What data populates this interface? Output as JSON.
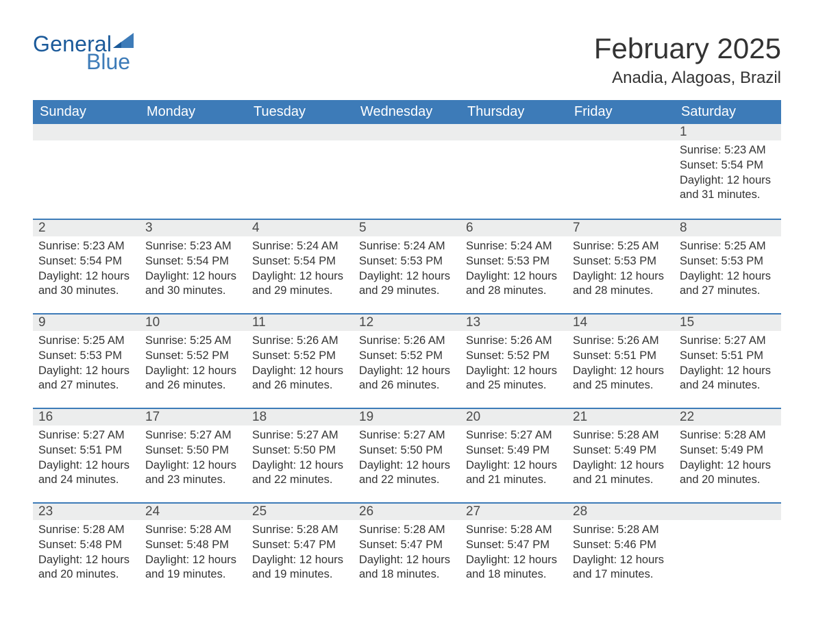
{
  "brand": {
    "word1": "General",
    "word2": "Blue",
    "logo_color_dark": "#1b5a9a",
    "logo_color_light": "#3d7bb8"
  },
  "title": "February 2025",
  "location": "Anadia, Alagoas, Brazil",
  "colors": {
    "header_bg": "#3d7bb8",
    "header_text": "#ffffff",
    "row_divider": "#3d7bb8",
    "daynum_bg": "#eceded",
    "text": "#333333",
    "background": "#ffffff"
  },
  "typography": {
    "title_fontsize": 42,
    "location_fontsize": 24,
    "dayheader_fontsize": 20,
    "daynum_fontsize": 19,
    "body_fontsize": 16.5,
    "font_family": "Arial"
  },
  "day_labels": [
    "Sunday",
    "Monday",
    "Tuesday",
    "Wednesday",
    "Thursday",
    "Friday",
    "Saturday"
  ],
  "weeks": [
    [
      null,
      null,
      null,
      null,
      null,
      null,
      {
        "n": "1",
        "sunrise": "5:23 AM",
        "sunset": "5:54 PM",
        "daylight1": "Daylight: 12 hours",
        "daylight2": "and 31 minutes."
      }
    ],
    [
      {
        "n": "2",
        "sunrise": "5:23 AM",
        "sunset": "5:54 PM",
        "daylight1": "Daylight: 12 hours",
        "daylight2": "and 30 minutes."
      },
      {
        "n": "3",
        "sunrise": "5:23 AM",
        "sunset": "5:54 PM",
        "daylight1": "Daylight: 12 hours",
        "daylight2": "and 30 minutes."
      },
      {
        "n": "4",
        "sunrise": "5:24 AM",
        "sunset": "5:54 PM",
        "daylight1": "Daylight: 12 hours",
        "daylight2": "and 29 minutes."
      },
      {
        "n": "5",
        "sunrise": "5:24 AM",
        "sunset": "5:53 PM",
        "daylight1": "Daylight: 12 hours",
        "daylight2": "and 29 minutes."
      },
      {
        "n": "6",
        "sunrise": "5:24 AM",
        "sunset": "5:53 PM",
        "daylight1": "Daylight: 12 hours",
        "daylight2": "and 28 minutes."
      },
      {
        "n": "7",
        "sunrise": "5:25 AM",
        "sunset": "5:53 PM",
        "daylight1": "Daylight: 12 hours",
        "daylight2": "and 28 minutes."
      },
      {
        "n": "8",
        "sunrise": "5:25 AM",
        "sunset": "5:53 PM",
        "daylight1": "Daylight: 12 hours",
        "daylight2": "and 27 minutes."
      }
    ],
    [
      {
        "n": "9",
        "sunrise": "5:25 AM",
        "sunset": "5:53 PM",
        "daylight1": "Daylight: 12 hours",
        "daylight2": "and 27 minutes."
      },
      {
        "n": "10",
        "sunrise": "5:25 AM",
        "sunset": "5:52 PM",
        "daylight1": "Daylight: 12 hours",
        "daylight2": "and 26 minutes."
      },
      {
        "n": "11",
        "sunrise": "5:26 AM",
        "sunset": "5:52 PM",
        "daylight1": "Daylight: 12 hours",
        "daylight2": "and 26 minutes."
      },
      {
        "n": "12",
        "sunrise": "5:26 AM",
        "sunset": "5:52 PM",
        "daylight1": "Daylight: 12 hours",
        "daylight2": "and 26 minutes."
      },
      {
        "n": "13",
        "sunrise": "5:26 AM",
        "sunset": "5:52 PM",
        "daylight1": "Daylight: 12 hours",
        "daylight2": "and 25 minutes."
      },
      {
        "n": "14",
        "sunrise": "5:26 AM",
        "sunset": "5:51 PM",
        "daylight1": "Daylight: 12 hours",
        "daylight2": "and 25 minutes."
      },
      {
        "n": "15",
        "sunrise": "5:27 AM",
        "sunset": "5:51 PM",
        "daylight1": "Daylight: 12 hours",
        "daylight2": "and 24 minutes."
      }
    ],
    [
      {
        "n": "16",
        "sunrise": "5:27 AM",
        "sunset": "5:51 PM",
        "daylight1": "Daylight: 12 hours",
        "daylight2": "and 24 minutes."
      },
      {
        "n": "17",
        "sunrise": "5:27 AM",
        "sunset": "5:50 PM",
        "daylight1": "Daylight: 12 hours",
        "daylight2": "and 23 minutes."
      },
      {
        "n": "18",
        "sunrise": "5:27 AM",
        "sunset": "5:50 PM",
        "daylight1": "Daylight: 12 hours",
        "daylight2": "and 22 minutes."
      },
      {
        "n": "19",
        "sunrise": "5:27 AM",
        "sunset": "5:50 PM",
        "daylight1": "Daylight: 12 hours",
        "daylight2": "and 22 minutes."
      },
      {
        "n": "20",
        "sunrise": "5:27 AM",
        "sunset": "5:49 PM",
        "daylight1": "Daylight: 12 hours",
        "daylight2": "and 21 minutes."
      },
      {
        "n": "21",
        "sunrise": "5:28 AM",
        "sunset": "5:49 PM",
        "daylight1": "Daylight: 12 hours",
        "daylight2": "and 21 minutes."
      },
      {
        "n": "22",
        "sunrise": "5:28 AM",
        "sunset": "5:49 PM",
        "daylight1": "Daylight: 12 hours",
        "daylight2": "and 20 minutes."
      }
    ],
    [
      {
        "n": "23",
        "sunrise": "5:28 AM",
        "sunset": "5:48 PM",
        "daylight1": "Daylight: 12 hours",
        "daylight2": "and 20 minutes."
      },
      {
        "n": "24",
        "sunrise": "5:28 AM",
        "sunset": "5:48 PM",
        "daylight1": "Daylight: 12 hours",
        "daylight2": "and 19 minutes."
      },
      {
        "n": "25",
        "sunrise": "5:28 AM",
        "sunset": "5:47 PM",
        "daylight1": "Daylight: 12 hours",
        "daylight2": "and 19 minutes."
      },
      {
        "n": "26",
        "sunrise": "5:28 AM",
        "sunset": "5:47 PM",
        "daylight1": "Daylight: 12 hours",
        "daylight2": "and 18 minutes."
      },
      {
        "n": "27",
        "sunrise": "5:28 AM",
        "sunset": "5:47 PM",
        "daylight1": "Daylight: 12 hours",
        "daylight2": "and 18 minutes."
      },
      {
        "n": "28",
        "sunrise": "5:28 AM",
        "sunset": "5:46 PM",
        "daylight1": "Daylight: 12 hours",
        "daylight2": "and 17 minutes."
      },
      null
    ]
  ],
  "labels": {
    "sunrise_prefix": "Sunrise: ",
    "sunset_prefix": "Sunset: "
  }
}
